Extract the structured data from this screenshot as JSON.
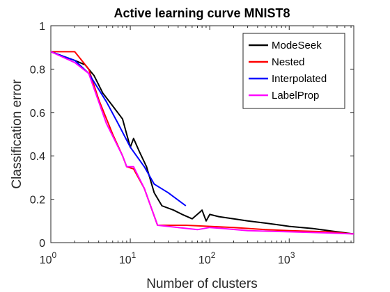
{
  "chart_data": {
    "type": "line",
    "title": "Active learning curve MNIST8",
    "xlabel": "Number of clusters",
    "ylabel": "Classification error",
    "xscale": "log",
    "xlim": [
      1,
      6500
    ],
    "ylim": [
      0,
      1
    ],
    "x_ticks": [
      {
        "value": 1,
        "base": "10",
        "exp": "0"
      },
      {
        "value": 10,
        "base": "10",
        "exp": "1"
      },
      {
        "value": 100,
        "base": "10",
        "exp": "2"
      },
      {
        "value": 1000,
        "base": "10",
        "exp": "3"
      }
    ],
    "y_ticks": [
      {
        "value": 0,
        "label": "0"
      },
      {
        "value": 0.2,
        "label": "0.2"
      },
      {
        "value": 0.4,
        "label": "0.4"
      },
      {
        "value": 0.6,
        "label": "0.6"
      },
      {
        "value": 0.8,
        "label": "0.8"
      },
      {
        "value": 1,
        "label": "1"
      }
    ],
    "grid": false,
    "legend_position": "top-right",
    "series": [
      {
        "name": "ModeSeek",
        "color": "#000000",
        "points": [
          [
            1,
            0.88
          ],
          [
            2,
            0.84
          ],
          [
            2.7,
            0.82
          ],
          [
            3.5,
            0.77
          ],
          [
            4.5,
            0.69
          ],
          [
            6,
            0.63
          ],
          [
            8,
            0.57
          ],
          [
            9,
            0.5
          ],
          [
            10,
            0.44
          ],
          [
            11,
            0.48
          ],
          [
            13,
            0.42
          ],
          [
            16,
            0.35
          ],
          [
            20,
            0.23
          ],
          [
            25,
            0.17
          ],
          [
            35,
            0.15
          ],
          [
            45,
            0.13
          ],
          [
            60,
            0.11
          ],
          [
            75,
            0.14
          ],
          [
            80,
            0.15
          ],
          [
            90,
            0.1
          ],
          [
            100,
            0.13
          ],
          [
            130,
            0.12
          ],
          [
            200,
            0.11
          ],
          [
            300,
            0.1
          ],
          [
            500,
            0.09
          ],
          [
            800,
            0.08
          ],
          [
            1000,
            0.075
          ],
          [
            2000,
            0.065
          ],
          [
            4000,
            0.05
          ],
          [
            6500,
            0.04
          ]
        ]
      },
      {
        "name": "Nested",
        "color": "#ff0000",
        "points": [
          [
            1,
            0.88
          ],
          [
            2,
            0.88
          ],
          [
            3,
            0.8
          ],
          [
            4,
            0.66
          ],
          [
            6,
            0.5
          ],
          [
            8,
            0.4
          ],
          [
            9,
            0.35
          ],
          [
            11,
            0.34
          ],
          [
            15,
            0.25
          ],
          [
            22,
            0.08
          ],
          [
            30,
            0.08
          ],
          [
            50,
            0.08
          ],
          [
            100,
            0.075
          ],
          [
            200,
            0.07
          ],
          [
            500,
            0.06
          ],
          [
            1000,
            0.055
          ],
          [
            3000,
            0.05
          ],
          [
            6500,
            0.04
          ]
        ]
      },
      {
        "name": "Interpolated",
        "color": "#0000ff",
        "points": [
          [
            1,
            0.88
          ],
          [
            2,
            0.84
          ],
          [
            3,
            0.78
          ],
          [
            5,
            0.65
          ],
          [
            7,
            0.55
          ],
          [
            10,
            0.44
          ],
          [
            15,
            0.35
          ],
          [
            20,
            0.27
          ],
          [
            30,
            0.23
          ],
          [
            50,
            0.17
          ]
        ]
      },
      {
        "name": "LabelProp",
        "color": "#ff00ff",
        "points": [
          [
            1,
            0.88
          ],
          [
            2,
            0.83
          ],
          [
            3,
            0.78
          ],
          [
            5,
            0.55
          ],
          [
            8,
            0.4
          ],
          [
            9,
            0.35
          ],
          [
            11,
            0.35
          ],
          [
            15,
            0.25
          ],
          [
            22,
            0.08
          ],
          [
            40,
            0.07
          ],
          [
            70,
            0.06
          ],
          [
            100,
            0.07
          ],
          [
            150,
            0.065
          ],
          [
            300,
            0.055
          ],
          [
            1000,
            0.05
          ],
          [
            3000,
            0.045
          ],
          [
            6500,
            0.04
          ]
        ]
      }
    ]
  }
}
